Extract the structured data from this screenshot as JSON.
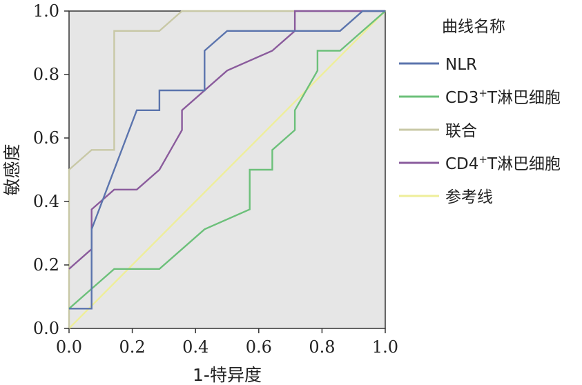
{
  "chart_data": {
    "type": "line",
    "xlabel": "1-特异度",
    "ylabel": "敏感度",
    "xlim": [
      0,
      1
    ],
    "ylim": [
      0,
      1
    ],
    "xticks": [
      "0.0",
      "0.2",
      "0.4",
      "0.6",
      "0.8",
      "1.0"
    ],
    "yticks": [
      "0.0",
      "0.2",
      "0.4",
      "0.6",
      "0.8",
      "1.0"
    ],
    "grid": false,
    "legend": {
      "title": "曲线名称",
      "position": "right",
      "entries": [
        {
          "label": "NLR"
        },
        {
          "label": "CD3",
          "sup": "+",
          "suffix": "T淋巴细胞"
        },
        {
          "label": "联合"
        },
        {
          "label": "CD4",
          "sup": "+",
          "suffix": "T淋巴细胞"
        },
        {
          "label": "参考线"
        }
      ]
    },
    "series": [
      {
        "name": "NLR",
        "color": "#5b74ad",
        "points": [
          [
            0,
            0.0625
          ],
          [
            0.0714,
            0.0625
          ],
          [
            0.0714,
            0.3125
          ],
          [
            0.2143,
            0.6875
          ],
          [
            0.2857,
            0.6875
          ],
          [
            0.2857,
            0.75
          ],
          [
            0.4286,
            0.75
          ],
          [
            0.4286,
            0.875
          ],
          [
            0.5,
            0.9375
          ],
          [
            0.8571,
            0.9375
          ],
          [
            0.9286,
            1.0
          ],
          [
            1.0,
            1.0
          ]
        ]
      },
      {
        "name": "CD3+T淋巴细胞",
        "color": "#6cc07a",
        "points": [
          [
            0,
            0.0625
          ],
          [
            0.1429,
            0.1875
          ],
          [
            0.2857,
            0.1875
          ],
          [
            0.4286,
            0.3125
          ],
          [
            0.5714,
            0.375
          ],
          [
            0.5714,
            0.5
          ],
          [
            0.6429,
            0.5
          ],
          [
            0.6429,
            0.5625
          ],
          [
            0.7143,
            0.625
          ],
          [
            0.7143,
            0.6875
          ],
          [
            0.7857,
            0.8125
          ],
          [
            0.7857,
            0.875
          ],
          [
            0.8571,
            0.875
          ],
          [
            1.0,
            1.0
          ]
        ]
      },
      {
        "name": "联合",
        "color": "#c8c8a6",
        "points": [
          [
            0,
            0
          ],
          [
            0,
            0.5
          ],
          [
            0.0714,
            0.5625
          ],
          [
            0.1429,
            0.5625
          ],
          [
            0.1429,
            0.9375
          ],
          [
            0.2857,
            0.9375
          ],
          [
            0.3571,
            1.0
          ],
          [
            1.0,
            1.0
          ]
        ]
      },
      {
        "name": "CD4+T淋巴细胞",
        "color": "#8a5b9c",
        "points": [
          [
            0,
            0.1875
          ],
          [
            0.0714,
            0.25
          ],
          [
            0.0714,
            0.375
          ],
          [
            0.1429,
            0.4375
          ],
          [
            0.2143,
            0.4375
          ],
          [
            0.2857,
            0.5
          ],
          [
            0.3571,
            0.625
          ],
          [
            0.3571,
            0.6875
          ],
          [
            0.5,
            0.8125
          ],
          [
            0.6429,
            0.875
          ],
          [
            0.7143,
            0.9375
          ],
          [
            0.7143,
            1.0
          ],
          [
            1.0,
            1.0
          ]
        ]
      },
      {
        "name": "参考线",
        "color": "#eeee9a",
        "points": [
          [
            0,
            0
          ],
          [
            1,
            1
          ]
        ]
      }
    ]
  }
}
